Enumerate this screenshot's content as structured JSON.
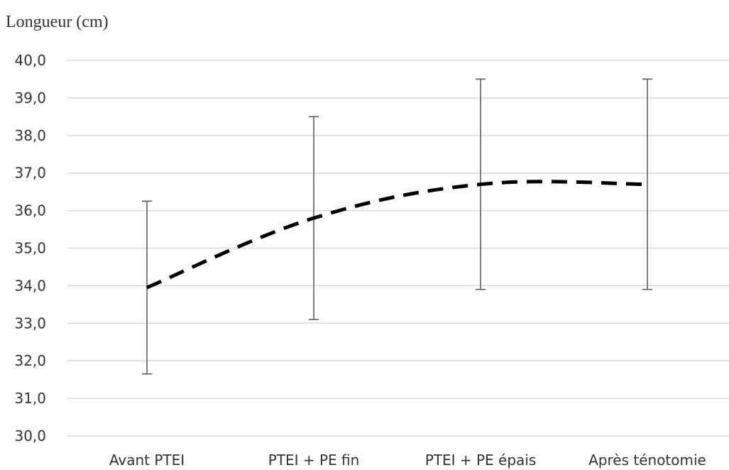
{
  "chart_data": {
    "type": "line",
    "ylabel": "Longueur (cm)",
    "xlabel": "",
    "categories": [
      "Avant PTEI",
      "PTEI + PE fin",
      "PTEI + PE épais",
      "Après ténotomie"
    ],
    "ylim": [
      30,
      40
    ],
    "y_ticks": [
      "30,0",
      "31,0",
      "32,0",
      "33,0",
      "34,0",
      "35,0",
      "36,0",
      "37,0",
      "38,0",
      "39,0",
      "40,0"
    ],
    "grid": true,
    "series": [
      {
        "values": [
          33.95,
          35.8,
          36.7,
          36.7
        ],
        "error_low": [
          31.65,
          33.1,
          33.9,
          33.9
        ],
        "error_high": [
          36.25,
          38.5,
          39.5,
          39.5
        ],
        "line_style": "dashed",
        "color": "#000000"
      }
    ]
  }
}
